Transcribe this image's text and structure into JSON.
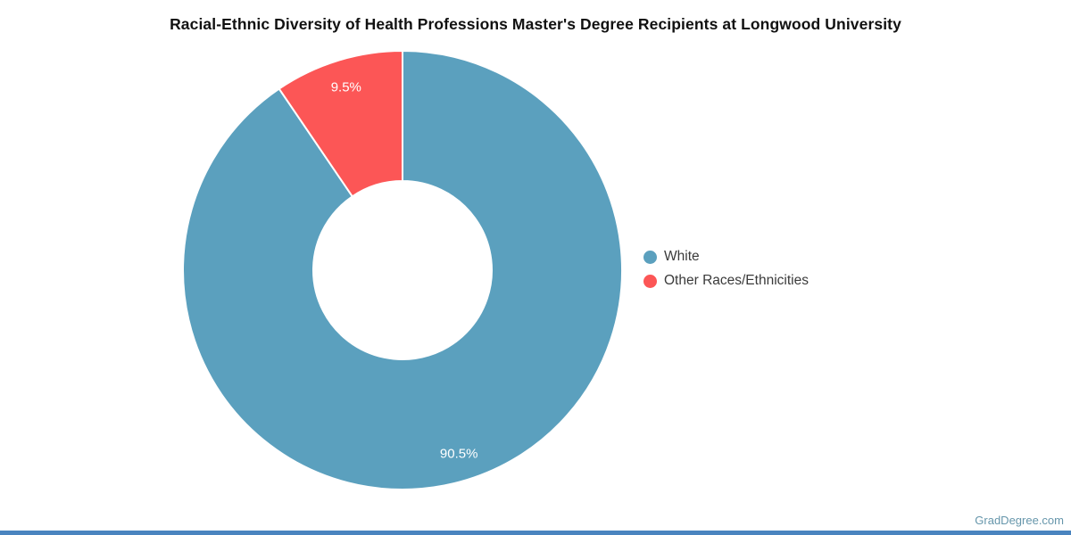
{
  "title": "Racial-Ethnic Diversity of Health Professions Master's Degree Recipients at Longwood University",
  "chart_data": {
    "type": "pie",
    "subtype": "donut",
    "title": "Racial-Ethnic Diversity of Health Professions Master's Degree Recipients at Longwood University",
    "labels": [
      "White",
      "Other Races/Ethnicities"
    ],
    "values": [
      90.5,
      9.5
    ],
    "value_labels": [
      "90.5%",
      "9.5%"
    ],
    "colors": [
      "#5BA0BE",
      "#FC5656"
    ],
    "slice_label_color": "#ffffff",
    "slice_divider_color": "#ffffff",
    "start_angle_deg": 0,
    "direction": "clockwise",
    "legend_position": "right",
    "legend_text_color": "#3a3a3a"
  },
  "footer": {
    "brand": "GradDegree.com",
    "brand_color": "#6696AB",
    "bar_color": "#4A84BF"
  }
}
